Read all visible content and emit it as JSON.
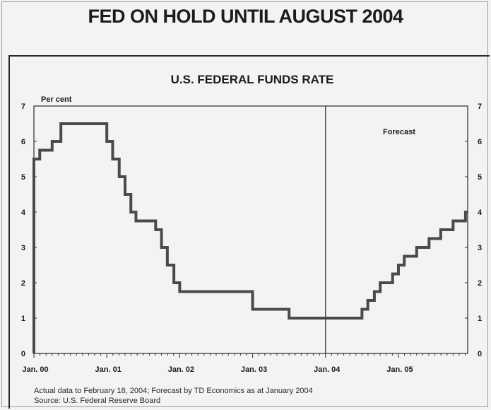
{
  "page": {
    "title": "FED ON HOLD UNTIL AUGUST 2004",
    "note": "Actual data to February 18, 2004; Forecast by TD Economics as at January 2004",
    "source": "Source: U.S. Federal Reserve Board"
  },
  "chart_data": {
    "type": "line",
    "title": "U.S. FEDERAL FUNDS RATE",
    "ylabel": "Per cent",
    "annotation": "Forecast",
    "forecast_start": 2004.0,
    "xlim": [
      2000.0,
      2005.95
    ],
    "ylim": [
      0,
      7
    ],
    "yticks": [
      0,
      1,
      2,
      3,
      4,
      5,
      6,
      7
    ],
    "xticks": [
      {
        "value": 2000.0,
        "label": "Jan. 00"
      },
      {
        "value": 2001.0,
        "label": "Jan. 01"
      },
      {
        "value": 2002.0,
        "label": "Jan. 02"
      },
      {
        "value": 2003.0,
        "label": "Jan. 03"
      },
      {
        "value": 2004.0,
        "label": "Jan. 04"
      },
      {
        "value": 2005.0,
        "label": "Jan. 05"
      }
    ],
    "grid": false,
    "series": [
      {
        "color": "#4a4a4a",
        "x": [
          2000.0,
          2000.08,
          2000.25,
          2000.37,
          2000.6,
          2000.95,
          2001.0,
          2001.08,
          2001.17,
          2001.25,
          2001.33,
          2001.4,
          2001.5,
          2001.67,
          2001.75,
          2001.83,
          2001.92,
          2002.0,
          2002.8,
          2002.9,
          2003.0,
          2003.25,
          2003.5,
          2004.0,
          2004.42,
          2004.5,
          2004.58,
          2004.67,
          2004.75,
          2004.83,
          2004.92,
          2005.0,
          2005.08,
          2005.17,
          2005.25,
          2005.33,
          2005.42,
          2005.5,
          2005.58,
          2005.67,
          2005.75,
          2005.83,
          2005.92
        ],
        "y": [
          5.5,
          5.75,
          6.0,
          6.5,
          6.5,
          6.5,
          6.0,
          5.5,
          5.0,
          4.5,
          4.0,
          3.75,
          3.75,
          3.5,
          3.0,
          2.5,
          2.0,
          1.75,
          1.75,
          1.75,
          1.25,
          1.25,
          1.0,
          1.0,
          1.0,
          1.25,
          1.5,
          1.75,
          2.0,
          2.0,
          2.25,
          2.5,
          2.75,
          2.75,
          3.0,
          3.0,
          3.25,
          3.25,
          3.5,
          3.5,
          3.75,
          3.75,
          4.0
        ]
      }
    ]
  }
}
